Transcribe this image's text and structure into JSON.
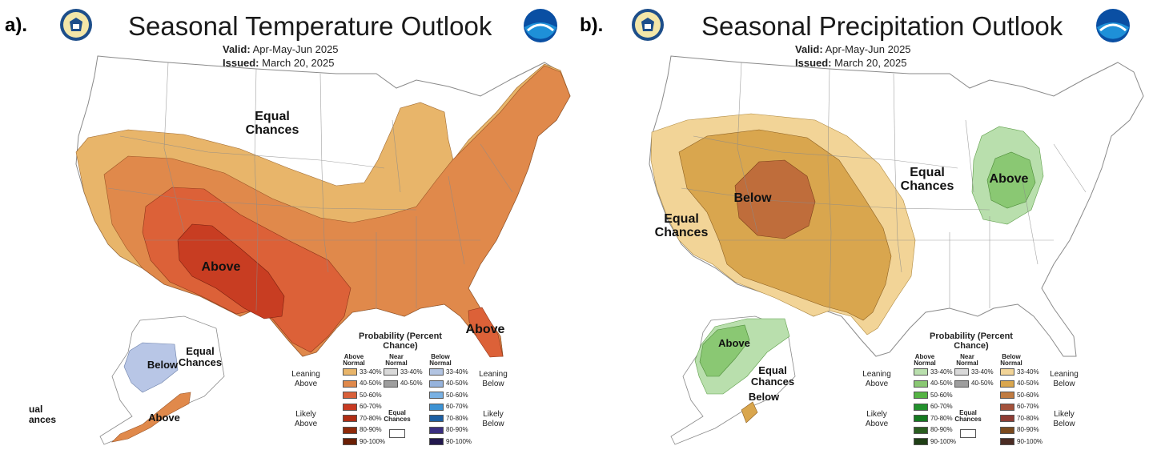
{
  "panel_a": {
    "label": "a).",
    "title": "Seasonal Temperature Outlook",
    "valid_label": "Valid:",
    "valid_value": "Apr-May-Jun 2025",
    "issued_label": "Issued:",
    "issued_value": "March 20, 2025",
    "map_labels": {
      "equal_north": "Equal Chances",
      "above_sw": "Above",
      "above_fl": "Above",
      "below_ak": "Below",
      "equal_ak": "Equal Chances",
      "above_ak": "Above",
      "equal_edge": "ual ances"
    }
  },
  "panel_b": {
    "label": "b).",
    "title": "Seasonal Precipitation Outlook",
    "valid_label": "Valid:",
    "valid_value": "Apr-May-Jun 2025",
    "issued_label": "Issued:",
    "issued_value": "March 20, 2025",
    "map_labels": {
      "below_co": "Below",
      "equal_west": "Equal Chances",
      "equal_mid": "Equal Chances",
      "above_oh": "Above",
      "above_ak": "Above",
      "equal_ak": "Equal Chances",
      "below_ak": "Below"
    }
  },
  "legend": {
    "title": "Probability (Percent Chance)",
    "above_head": "Above Normal",
    "near_head": "Near Normal",
    "below_head": "Below Normal",
    "leaning_above": "Leaning Above",
    "leaning_below": "Leaning Below",
    "likely_above": "Likely Above",
    "likely_below": "Likely Below",
    "equal_chances": "Equal Chances",
    "ranges": [
      "33-40%",
      "40-50%",
      "50-60%",
      "60-70%",
      "70-80%",
      "80-90%",
      "90-100%"
    ],
    "near_ranges": [
      "33-40%",
      "40-50%"
    ],
    "temp_above_colors": [
      "#e8b56a",
      "#e0894b",
      "#d9603a",
      "#c83a22",
      "#b02d14",
      "#8f2a0a",
      "#6b1f05"
    ],
    "temp_below_colors": [
      "#b2c4e2",
      "#96b3dc",
      "#79b1e3",
      "#3d93d4",
      "#1c5fa3",
      "#3a2e80",
      "#22184e"
    ],
    "precip_above_colors": [
      "#b9dfad",
      "#8ac873",
      "#55b444",
      "#22912c",
      "#147a20",
      "#2a5d20",
      "#1f3f16"
    ],
    "precip_below_colors": [
      "#f2d497",
      "#d9a64e",
      "#c07b41",
      "#a4523b",
      "#8e3d34",
      "#7a4a1e",
      "#4b2c24"
    ],
    "near_colors": [
      "#d9d9d9",
      "#9e9e9e"
    ]
  },
  "colors": {
    "temp_lean_above": "#e8b56a",
    "temp_40_50": "#e0894b",
    "temp_50_60": "#dc6138",
    "temp_60_70": "#c83d22",
    "temp_below_ak": "#b8c6e6",
    "precip_below_lean": "#f2d497",
    "precip_below_40": "#d9a64e",
    "precip_below_50": "#bf6d3b",
    "precip_above_lean": "#b9dfad",
    "precip_above_40": "#8ac873"
  }
}
